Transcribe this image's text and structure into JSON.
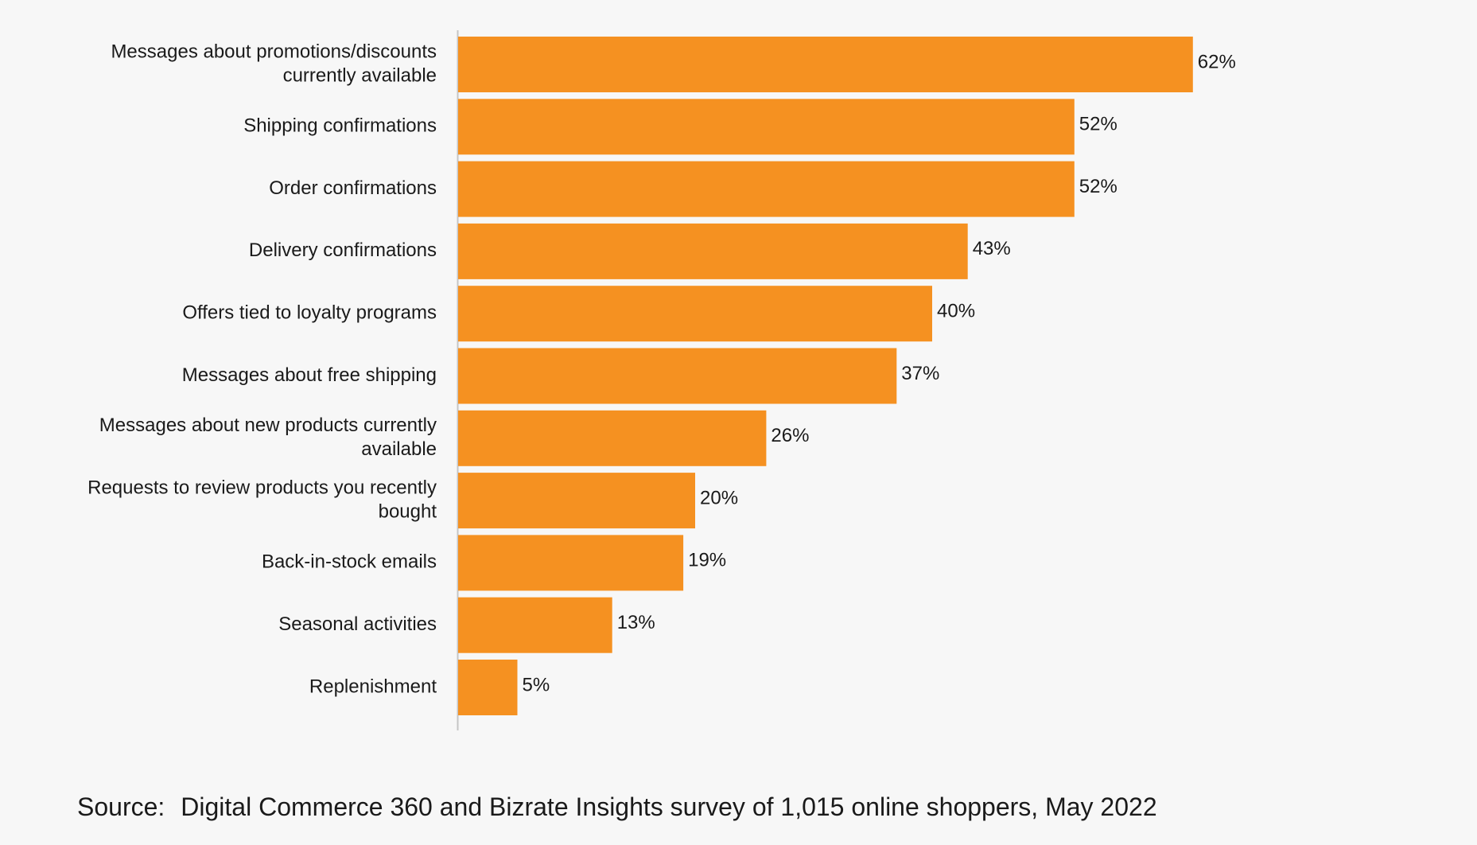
{
  "chart_data": {
    "type": "bar",
    "orientation": "horizontal",
    "categories": [
      [
        "Messages about promotions/discounts",
        "currently available"
      ],
      [
        "Shipping confirmations"
      ],
      [
        "Order confirmations"
      ],
      [
        "Delivery confirmations"
      ],
      [
        "Offers tied to loyalty programs"
      ],
      [
        "Messages about free shipping"
      ],
      [
        "Messages about new products currently",
        "available"
      ],
      [
        "Requests to review products you recently",
        "bought"
      ],
      [
        "Back-in-stock emails"
      ],
      [
        "Seasonal activities"
      ],
      [
        "Replenishment"
      ]
    ],
    "values": [
      62,
      52,
      52,
      43,
      40,
      37,
      26,
      20,
      19,
      13,
      5
    ],
    "value_suffix": "%",
    "xlim": [
      0,
      100
    ],
    "grid": false,
    "bar_color": "#f59121"
  },
  "source": {
    "prefix": "Source:",
    "text": "Digital Commerce 360 and Bizrate Insights survey of 1,015 online shoppers, May 2022"
  }
}
